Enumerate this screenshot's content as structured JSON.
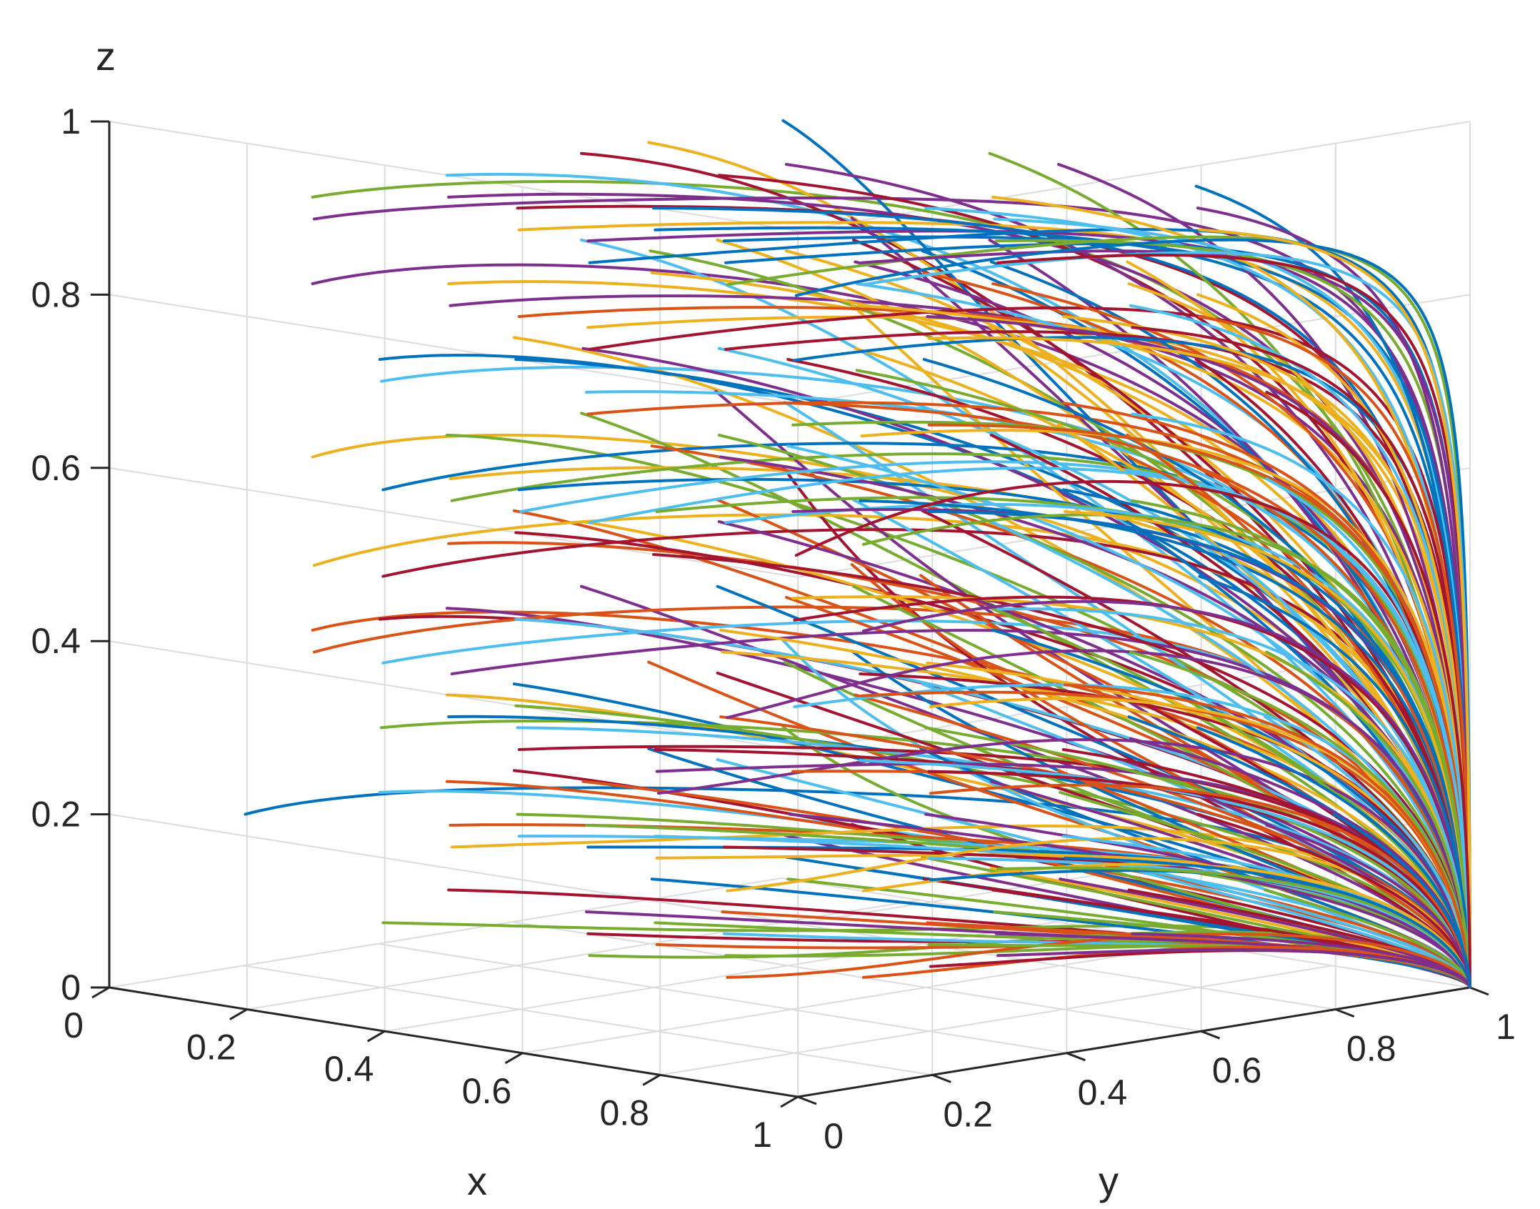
{
  "chart_data": {
    "type": "line",
    "title": "",
    "xlabel": "x",
    "ylabel": "y",
    "zlabel": "z",
    "xlim": [
      0,
      1
    ],
    "ylim": [
      0,
      1
    ],
    "zlim": [
      0,
      1
    ],
    "grid": true,
    "x_ticks": [
      "0",
      "0.2",
      "0.4",
      "0.6",
      "0.8",
      "1"
    ],
    "y_ticks": [
      "0",
      "0.2",
      "0.4",
      "0.6",
      "0.8",
      "1"
    ],
    "z_ticks": [
      "0",
      "0.2",
      "0.4",
      "0.6",
      "0.8",
      "1"
    ],
    "colors": [
      "#0072BD",
      "#D95319",
      "#EDB120",
      "#7E2F8E",
      "#77AC30",
      "#4DBEEE",
      "#A2142F"
    ],
    "dynamics": "evolutionary trajectories converging to (x,y,z) = (1,1,0) from a grid of initial points",
    "initial_points_grid": {
      "x": [
        0.1,
        0.2,
        0.3,
        0.4,
        0.5,
        0.6,
        0.7,
        0.8,
        0.9
      ],
      "y": [
        0.1,
        0.2,
        0.3,
        0.4,
        0.5,
        0.6,
        0.7,
        0.8,
        0.9
      ],
      "z": [
        0.1,
        0.2,
        0.3,
        0.4,
        0.5,
        0.6,
        0.7,
        0.8,
        0.9
      ]
    },
    "equilibrium": [
      1,
      1,
      0
    ]
  }
}
